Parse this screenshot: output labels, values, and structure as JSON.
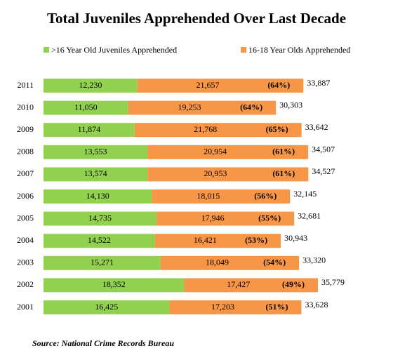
{
  "chart_data": {
    "type": "stacked-barh",
    "title": "Total Juveniles Apprehended Over Last Decade",
    "source": "Source: National Crime Records Bureau",
    "legend": "top",
    "categories": [
      "2011",
      "2010",
      "2009",
      "2008",
      "2007",
      "2006",
      "2005",
      "2004",
      "2003",
      "2002",
      "2001"
    ],
    "series": [
      {
        "name": ">16 Year Old Juveniles Apprehended",
        "color": "#92d050",
        "values": [
          12230,
          11050,
          11874,
          13553,
          13574,
          14130,
          14735,
          14522,
          15271,
          18352,
          16425
        ],
        "value_labels": [
          "12,230",
          "11,050",
          "11,874",
          "13,553",
          "13,574",
          "14,130",
          "14,735",
          "14,522",
          "15,271",
          "18,352",
          "16,425"
        ]
      },
      {
        "name": "16-18 Year Olds Apprehended",
        "color": "#f79646",
        "values": [
          21657,
          19253,
          21768,
          20954,
          20953,
          18015,
          17946,
          16421,
          18049,
          17427,
          17203
        ],
        "value_labels": [
          "21,657",
          "19,253",
          "21,768",
          "20,954",
          "20,953",
          "18,015",
          "17,946",
          "16,421",
          "18,049",
          "17,427",
          "17,203"
        ]
      }
    ],
    "shares": {
      "values": [
        64,
        64,
        65,
        61,
        61,
        56,
        55,
        53,
        54,
        49,
        51
      ],
      "value_labels": [
        "(64%)",
        "(64%)",
        "(65%)",
        "(61%)",
        "(61%)",
        "(56%)",
        "(55%)",
        "(53%)",
        "(54%)",
        "(49%)",
        "(51%)"
      ]
    },
    "totals": {
      "values": [
        33887,
        30303,
        33642,
        34507,
        34527,
        32145,
        32681,
        30943,
        33320,
        35779,
        33628
      ],
      "value_labels": [
        "33,887",
        "30,303",
        "33,642",
        "34,507",
        "34,527",
        "32,145",
        "32,681",
        "30,943",
        "33,320",
        "35,779",
        "33,628"
      ]
    }
  }
}
